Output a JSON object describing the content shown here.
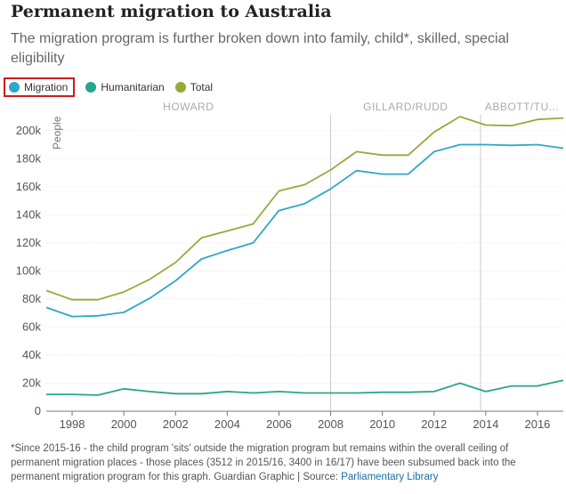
{
  "title": "Permanent migration to Australia",
  "subtitle": "The migration program is further broken down into family, child*, skilled, special eligibility",
  "legend": [
    {
      "name": "Migration",
      "color": "#2ea8c7"
    },
    {
      "name": "Humanitarian",
      "color": "#27a58d"
    },
    {
      "name": "Total",
      "color": "#9aa83a"
    }
  ],
  "footnote": {
    "text": "*Since 2015-16 - the child program 'sits' outside the migration program but remains within the overall ceiling of permanent migration places - those places (3512 in 2015/16, 3400 in 16/17) have been subsumed back into the permanent migration program for this graph. Guardian Graphic | Source: ",
    "link": "Parliamentary Library"
  },
  "chart_data": {
    "type": "line",
    "title": "Permanent migration to Australia",
    "ylabel": "People",
    "xlim": [
      1997,
      2017
    ],
    "ylim": [
      0,
      210000
    ],
    "grid": true,
    "legend_position": "top-left",
    "x": [
      1997,
      1998,
      1999,
      2000,
      2001,
      2002,
      2003,
      2004,
      2005,
      2006,
      2007,
      2008,
      2009,
      2010,
      2011,
      2012,
      2013,
      2014,
      2015,
      2016,
      2017
    ],
    "x_ticks": [
      1998,
      2000,
      2002,
      2004,
      2006,
      2008,
      2010,
      2012,
      2014,
      2016
    ],
    "y_ticks": [
      0,
      20000,
      40000,
      60000,
      80000,
      100000,
      120000,
      140000,
      160000,
      180000,
      200000
    ],
    "y_tick_labels": [
      "0",
      "20k",
      "40k",
      "60k",
      "80k",
      "100k",
      "120k",
      "140k",
      "160k",
      "180k",
      "200k"
    ],
    "series": [
      {
        "name": "Migration",
        "color": "#2ea8c7",
        "values": [
          74000,
          67500,
          68000,
          70500,
          80500,
          93000,
          108500,
          114500,
          120000,
          143000,
          148000,
          158500,
          171500,
          169000,
          169000,
          185000,
          190000,
          190000,
          189500,
          190000,
          187500
        ]
      },
      {
        "name": "Humanitarian",
        "color": "#27a58d",
        "values": [
          12000,
          12000,
          11500,
          16000,
          14000,
          12500,
          12500,
          14000,
          13000,
          14000,
          13000,
          13000,
          13000,
          13500,
          13500,
          14000,
          20000,
          14000,
          18000,
          18000,
          22000
        ]
      },
      {
        "name": "Total",
        "color": "#9aa83a",
        "values": [
          86000,
          79500,
          79500,
          85000,
          94000,
          106000,
          123500,
          128500,
          133500,
          157000,
          161500,
          172000,
          185000,
          182500,
          182500,
          199000,
          210000,
          204000,
          203500,
          208000,
          209000
        ]
      }
    ],
    "eras": [
      {
        "label": "HOWARD",
        "start": 1997,
        "end": 2008
      },
      {
        "label": "GILLARD/RUDD",
        "start": 2008,
        "end": 2013.8
      },
      {
        "label": "ABBOTT/TU...",
        "start": 2013.8,
        "end": 2017
      }
    ],
    "era_dividers": [
      2008,
      2013.8
    ]
  }
}
